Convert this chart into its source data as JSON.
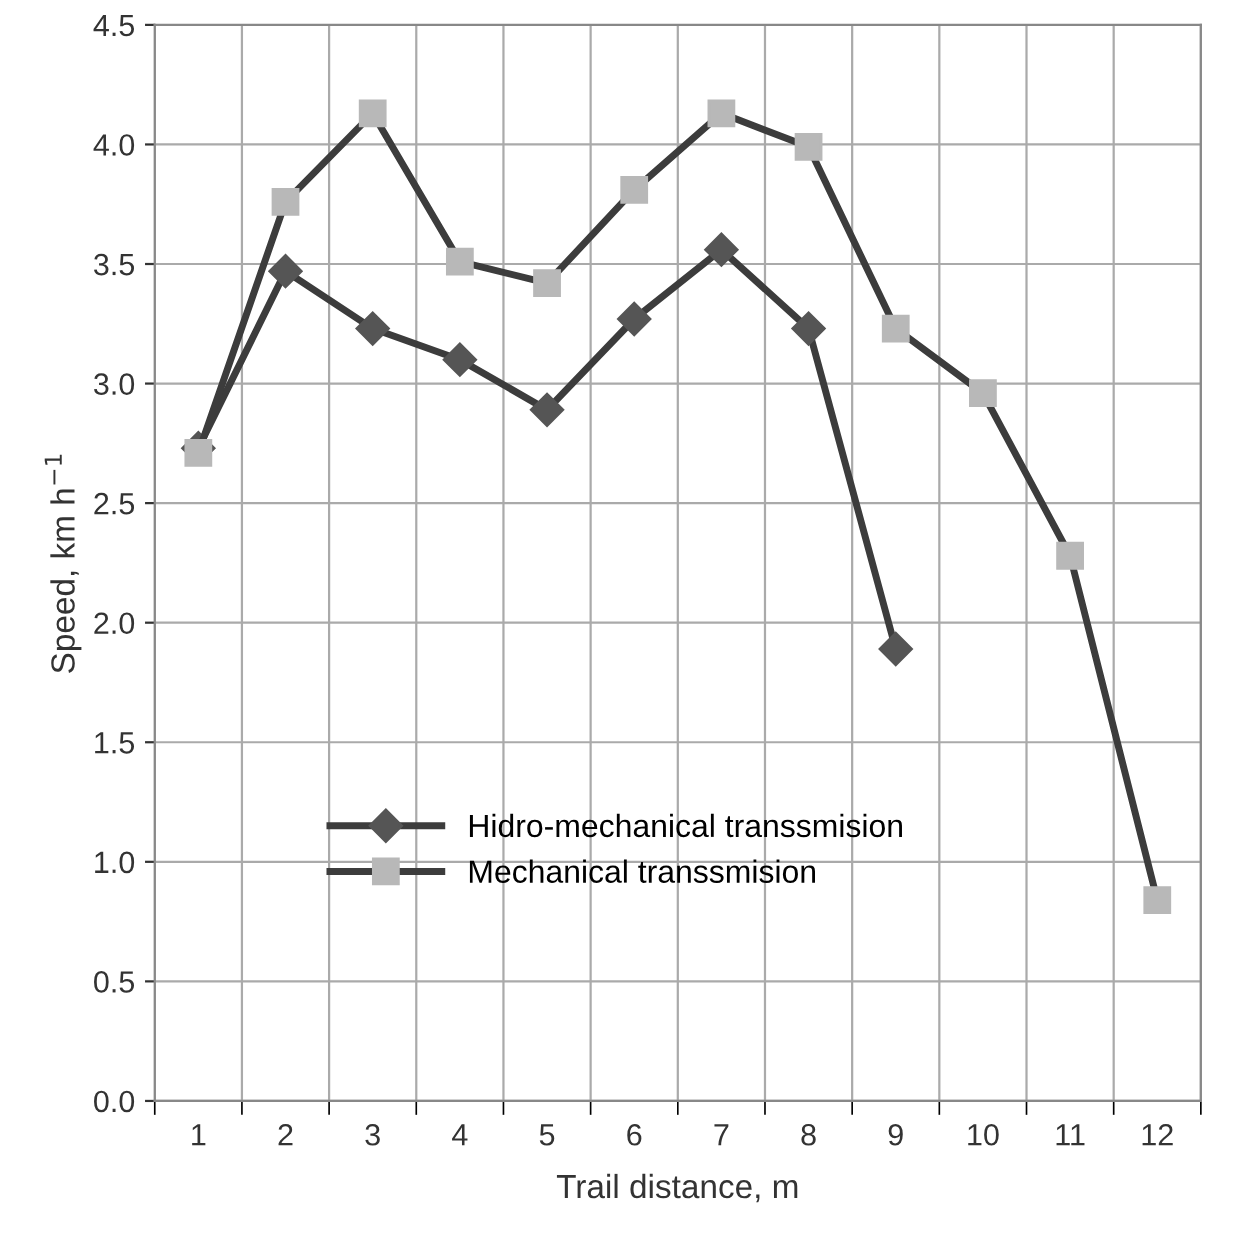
{
  "chart_data": {
    "type": "line",
    "xlabel": "Trail distance, m",
    "ylabel": "Speed, km h$^{−1}$",
    "categories": [
      "1",
      "2",
      "3",
      "4",
      "5",
      "6",
      "7",
      "8",
      "9",
      "10",
      "11",
      "12"
    ],
    "series": [
      {
        "name": "Hidro-mechanical transsmision",
        "color": "#555555",
        "marker": "diamond",
        "values": [
          2.73,
          3.47,
          3.23,
          3.1,
          2.89,
          3.27,
          3.56,
          3.23,
          1.89,
          null,
          null,
          null
        ]
      },
      {
        "name": "Mechanical transsmision",
        "color": "#b8b8b8",
        "marker": "square",
        "values": [
          2.71,
          3.76,
          4.13,
          3.51,
          3.42,
          3.81,
          4.13,
          3.99,
          3.23,
          2.96,
          2.28,
          0.84
        ]
      }
    ],
    "ylim": [
      0,
      4.5
    ],
    "yticks": [
      {
        "value": 0,
        "label": "0.0"
      },
      0.5,
      {
        "value": 1,
        "label": "1.0"
      },
      1.5,
      {
        "value": 2,
        "label": "2.0"
      },
      2.5,
      {
        "value": 3,
        "label": "3.0"
      },
      3.5,
      {
        "value": 4,
        "label": "4.0"
      },
      4.5
    ],
    "grid": true,
    "legend": "bottom left",
    "line_style": "solid"
  }
}
